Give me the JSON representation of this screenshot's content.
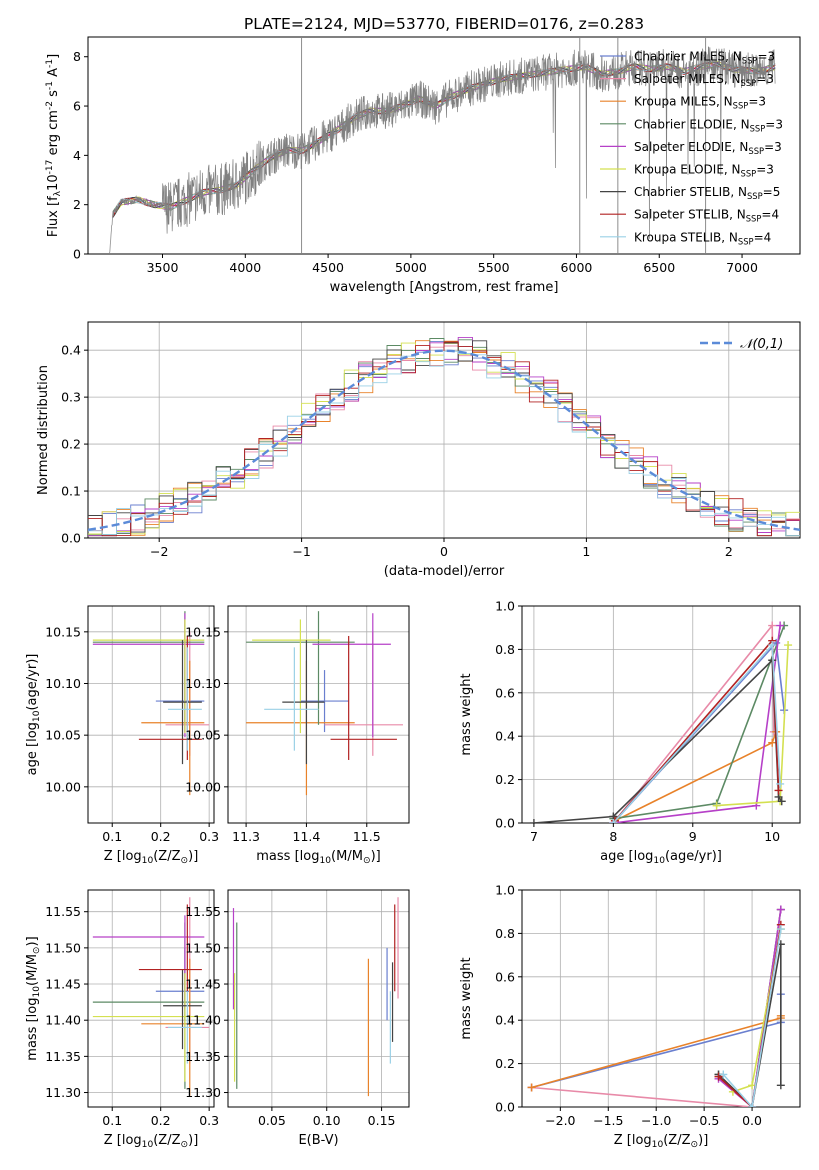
{
  "title": "PLATE=2124, MJD=53770, FIBERID=0176, z=0.283",
  "legend_entries": [
    {
      "label": "Chabrier MILES, N$_{SSP}$=3",
      "color": "#6a7fcf"
    },
    {
      "label": "Salpeter MILES, N$_{SSP}$=3",
      "color": "#e88aa8"
    },
    {
      "label": "Kroupa MILES, N$_{SSP}$=3",
      "color": "#e8822a"
    },
    {
      "label": "Chabrier ELODIE, N$_{SSP}$=3",
      "color": "#5c8a64"
    },
    {
      "label": "Salpeter ELODIE, N$_{SSP}$=3",
      "color": "#b640c8"
    },
    {
      "label": "Kroupa ELODIE, N$_{SSP}$=3",
      "color": "#d4e050"
    },
    {
      "label": "Chabrier STELIB, N$_{SSP}$=5",
      "color": "#444444"
    },
    {
      "label": "Salpeter STELIB, N$_{SSP}$=4",
      "color": "#b22222"
    },
    {
      "label": "Kroupa STELIB, N$_{SSP}$=4",
      "color": "#9ad0e6"
    }
  ],
  "chart_data": [
    {
      "type": "line",
      "id": "spectrum",
      "xlabel": "wavelength [Angstrom, rest frame]",
      "ylabel": "Flux [f$_\\lambda$10$^{-17}$ erg cm$^{-2}$ s$^{-1}$ A$^{-1}$]",
      "xlim": [
        3050,
        7350
      ],
      "ylim": [
        0,
        8.8
      ],
      "xticks": [
        3500,
        4000,
        4500,
        5000,
        5500,
        6000,
        6500,
        7000
      ],
      "yticks": [
        0,
        2,
        4,
        6,
        8
      ],
      "grid": false,
      "legend": "top-right",
      "data_color": "#808080",
      "continuum_points": [
        [
          3180,
          0
        ],
        [
          3200,
          1.6
        ],
        [
          3250,
          2.1
        ],
        [
          3350,
          2.2
        ],
        [
          3450,
          2.0
        ],
        [
          3550,
          1.9
        ],
        [
          3650,
          2.2
        ],
        [
          3750,
          2.5
        ],
        [
          3850,
          2.6
        ],
        [
          3950,
          2.8
        ],
        [
          4050,
          3.4
        ],
        [
          4150,
          3.9
        ],
        [
          4250,
          4.2
        ],
        [
          4350,
          4.2
        ],
        [
          4450,
          4.6
        ],
        [
          4550,
          5.0
        ],
        [
          4650,
          5.5
        ],
        [
          4750,
          5.8
        ],
        [
          4850,
          5.8
        ],
        [
          4950,
          6.0
        ],
        [
          5050,
          6.3
        ],
        [
          5150,
          6.0
        ],
        [
          5250,
          6.4
        ],
        [
          5350,
          6.7
        ],
        [
          5450,
          6.9
        ],
        [
          5550,
          7.1
        ],
        [
          5650,
          7.2
        ],
        [
          5750,
          7.3
        ],
        [
          5850,
          7.4
        ],
        [
          5950,
          7.5
        ],
        [
          6050,
          7.6
        ],
        [
          6150,
          7.3
        ],
        [
          6250,
          7.4
        ],
        [
          6350,
          7.6
        ],
        [
          6450,
          7.5
        ],
        [
          6550,
          7.6
        ],
        [
          6650,
          7.4
        ],
        [
          6750,
          7.6
        ],
        [
          6850,
          7.7
        ],
        [
          6950,
          7.5
        ],
        [
          7100,
          7.4
        ],
        [
          7200,
          7.6
        ]
      ]
    },
    {
      "type": "line",
      "id": "residuals",
      "xlabel": "(data-model)/error",
      "ylabel": "Normed distribution",
      "xlim": [
        -2.5,
        2.5
      ],
      "ylim": [
        0,
        0.46
      ],
      "xticks": [
        -2,
        -1,
        0,
        1,
        2
      ],
      "yticks": [
        0.0,
        0.1,
        0.2,
        0.3,
        0.4
      ],
      "grid": true,
      "legend": "top-right",
      "gaussian_label": "$\\mathcal{N}(0,1)$",
      "gaussian_color": "#5b8bd8",
      "bin_width": 0.1
    },
    {
      "type": "scatter",
      "id": "age_vs_Z",
      "xlabel": "Z [log$_{10}$(Z/Z$_\\odot$)]",
      "ylabel": "age  [log$_{10}$(age/yr)]",
      "xlim": [
        0.05,
        0.31
      ],
      "ylim": [
        9.965,
        10.175
      ],
      "xticks": [
        0.1,
        0.2,
        0.3
      ],
      "yticks": [
        10.0,
        10.05,
        10.1,
        10.15
      ],
      "grid": true,
      "points": [
        {
          "c": 0,
          "x": 0.25,
          "xerr": [
            0.06,
            0.04
          ],
          "y": 10.083,
          "yerr": [
            0.03,
            0.03
          ]
        },
        {
          "c": 1,
          "x": 0.26,
          "xerr": [
            0.05,
            0.04
          ],
          "y": 10.06,
          "yerr": [
            0.03,
            0.09
          ]
        },
        {
          "c": 2,
          "x": 0.26,
          "xerr": [
            0.1,
            0.03
          ],
          "y": 10.062,
          "yerr": [
            0.07,
            0.06
          ]
        },
        {
          "c": 3,
          "x": 0.25,
          "xerr": [
            0.19,
            0.04
          ],
          "y": 10.14,
          "yerr": [
            0.08,
            0.03
          ]
        },
        {
          "c": 4,
          "x": 0.25,
          "xerr": [
            0.19,
            0.04
          ],
          "y": 10.138,
          "yerr": [
            0.09,
            0.03
          ]
        },
        {
          "c": 5,
          "x": 0.25,
          "xerr": [
            0.19,
            0.04
          ],
          "y": 10.142,
          "yerr": [
            0.09,
            0.02
          ]
        },
        {
          "c": 6,
          "x": 0.245,
          "xerr": [
            0.04,
            0.04
          ],
          "y": 10.082,
          "yerr": [
            0.06,
            0.06
          ]
        },
        {
          "c": 7,
          "x": 0.255,
          "xerr": [
            0.1,
            0.03
          ],
          "y": 10.046,
          "yerr": [
            0.02,
            0.1
          ]
        },
        {
          "c": 8,
          "x": 0.255,
          "xerr": [
            0.04,
            0.03
          ],
          "y": 10.075,
          "yerr": [
            0.04,
            0.06
          ]
        }
      ]
    },
    {
      "type": "scatter",
      "id": "age_vs_mass",
      "xlabel": "mass [log$_{10}$(M/M$_\\odot$)]",
      "ylabel": "",
      "xlim": [
        11.27,
        11.57
      ],
      "ylim": [
        9.965,
        10.175
      ],
      "xticks": [
        11.3,
        11.4,
        11.5
      ],
      "yticks": [
        10.0,
        10.05,
        10.1,
        10.15
      ],
      "grid": true,
      "points": [
        {
          "c": 0,
          "x": 11.43,
          "xerr": [
            0.04,
            0.04
          ],
          "y": 10.083,
          "yerr": [
            0.03,
            0.03
          ]
        },
        {
          "c": 1,
          "x": 11.51,
          "xerr": [
            0.08,
            0.05
          ],
          "y": 10.06,
          "yerr": [
            0.03,
            0.09
          ]
        },
        {
          "c": 2,
          "x": 11.4,
          "xerr": [
            0.1,
            0.08
          ],
          "y": 10.062,
          "yerr": [
            0.07,
            0.06
          ]
        },
        {
          "c": 3,
          "x": 11.42,
          "xerr": [
            0.12,
            0.06
          ],
          "y": 10.14,
          "yerr": [
            0.08,
            0.03
          ]
        },
        {
          "c": 4,
          "x": 11.51,
          "xerr": [
            0.1,
            0.03
          ],
          "y": 10.138,
          "yerr": [
            0.09,
            0.03
          ]
        },
        {
          "c": 5,
          "x": 11.39,
          "xerr": [
            0.08,
            0.05
          ],
          "y": 10.142,
          "yerr": [
            0.09,
            0.02
          ]
        },
        {
          "c": 6,
          "x": 11.4,
          "xerr": [
            0.04,
            0.03
          ],
          "y": 10.082,
          "yerr": [
            0.06,
            0.06
          ]
        },
        {
          "c": 7,
          "x": 11.47,
          "xerr": [
            0.03,
            0.08
          ],
          "y": 10.046,
          "yerr": [
            0.02,
            0.1
          ]
        },
        {
          "c": 8,
          "x": 11.38,
          "xerr": [
            0.05,
            0.04
          ],
          "y": 10.075,
          "yerr": [
            0.04,
            0.06
          ]
        }
      ]
    },
    {
      "type": "line",
      "id": "weight_vs_age",
      "xlabel": "age  [log$_{10}$(age/yr)]",
      "ylabel": "mass weight",
      "xlim": [
        6.85,
        10.35
      ],
      "ylim": [
        0,
        1.0
      ],
      "xticks": [
        7,
        8,
        9,
        10
      ],
      "yticks": [
        0.0,
        0.2,
        0.4,
        0.6,
        0.8,
        1.0
      ],
      "grid": true,
      "series": [
        {
          "c": 0,
          "x": [
            8.0,
            10.05,
            10.15
          ],
          "y": [
            0.0,
            0.83,
            0.52
          ]
        },
        {
          "c": 1,
          "x": [
            8.0,
            10.0,
            10.02
          ],
          "y": [
            0.0,
            0.91,
            0.42
          ]
        },
        {
          "c": 2,
          "x": [
            8.02,
            10.0,
            10.05
          ],
          "y": [
            0.01,
            0.37,
            0.42
          ]
        },
        {
          "c": 3,
          "x": [
            8.0,
            9.3,
            10.15
          ],
          "y": [
            0.02,
            0.09,
            0.91
          ]
        },
        {
          "c": 4,
          "x": [
            8.0,
            9.8,
            10.1
          ],
          "y": [
            0.0,
            0.08,
            0.91
          ]
        },
        {
          "c": 5,
          "x": [
            9.3,
            10.1,
            10.2
          ],
          "y": [
            0.08,
            0.1,
            0.82
          ]
        },
        {
          "c": 6,
          "x": [
            7.0,
            8.0,
            10.0,
            10.08,
            10.12
          ],
          "y": [
            0.0,
            0.03,
            0.75,
            0.12,
            0.1
          ]
        },
        {
          "c": 7,
          "x": [
            8.02,
            10.0,
            10.08
          ],
          "y": [
            0.01,
            0.84,
            0.15
          ]
        },
        {
          "c": 8,
          "x": [
            8.0,
            10.0,
            10.1
          ],
          "y": [
            0.0,
            0.82,
            0.18
          ]
        }
      ]
    },
    {
      "type": "scatter",
      "id": "mass_vs_Z",
      "xlabel": "Z [log$_{10}$(Z/Z$_\\odot$)]",
      "ylabel": "mass [log$_{10}$(M/M$_\\odot$)]",
      "xlim": [
        0.05,
        0.31
      ],
      "ylim": [
        11.28,
        11.58
      ],
      "xticks": [
        0.1,
        0.2,
        0.3
      ],
      "yticks": [
        11.3,
        11.35,
        11.4,
        11.45,
        11.5,
        11.55
      ],
      "grid": true,
      "points": [
        {
          "c": 0,
          "x": 0.25,
          "xerr": [
            0.06,
            0.04
          ],
          "y": 11.44,
          "yerr": [
            0.04,
            0.06
          ]
        },
        {
          "c": 1,
          "x": 0.26,
          "xerr": [
            0.05,
            0.04
          ],
          "y": 11.39,
          "yerr": [
            0.05,
            0.18
          ]
        },
        {
          "c": 2,
          "x": 0.26,
          "xerr": [
            0.1,
            0.03
          ],
          "y": 11.395,
          "yerr": [
            0.1,
            0.09
          ]
        },
        {
          "c": 3,
          "x": 0.25,
          "xerr": [
            0.19,
            0.04
          ],
          "y": 11.425,
          "yerr": [
            0.12,
            0.11
          ]
        },
        {
          "c": 4,
          "x": 0.25,
          "xerr": [
            0.19,
            0.04
          ],
          "y": 11.515,
          "yerr": [
            0.1,
            0.03
          ]
        },
        {
          "c": 5,
          "x": 0.25,
          "xerr": [
            0.19,
            0.04
          ],
          "y": 11.405,
          "yerr": [
            0.09,
            0.06
          ]
        },
        {
          "c": 6,
          "x": 0.245,
          "xerr": [
            0.04,
            0.04
          ],
          "y": 11.42,
          "yerr": [
            0.06,
            0.05
          ]
        },
        {
          "c": 7,
          "x": 0.255,
          "xerr": [
            0.1,
            0.03
          ],
          "y": 11.47,
          "yerr": [
            0.03,
            0.09
          ]
        },
        {
          "c": 8,
          "x": 0.255,
          "xerr": [
            0.04,
            0.03
          ],
          "y": 11.39,
          "yerr": [
            0.05,
            0.05
          ]
        }
      ]
    },
    {
      "type": "scatter",
      "id": "mass_vs_EBV",
      "xlabel": "E(B-V)",
      "ylabel": "",
      "xlim": [
        0.01,
        0.175
      ],
      "ylim": [
        11.28,
        11.58
      ],
      "xticks": [
        0.05,
        0.1,
        0.15
      ],
      "yticks": [
        11.3,
        11.35,
        11.4,
        11.45,
        11.5,
        11.55
      ],
      "grid": true,
      "points": [
        {
          "c": 0,
          "x": 0.155,
          "xerr": [
            0,
            0
          ],
          "y": 11.44,
          "yerr": [
            0.04,
            0.06
          ]
        },
        {
          "c": 1,
          "x": 0.165,
          "xerr": [
            0,
            0
          ],
          "y": 11.48,
          "yerr": [
            0.05,
            0.09
          ]
        },
        {
          "c": 2,
          "x": 0.138,
          "xerr": [
            0,
            0
          ],
          "y": 11.395,
          "yerr": [
            0.1,
            0.09
          ]
        },
        {
          "c": 3,
          "x": 0.018,
          "xerr": [
            0,
            0
          ],
          "y": 11.425,
          "yerr": [
            0.12,
            0.11
          ]
        },
        {
          "c": 4,
          "x": 0.015,
          "xerr": [
            0,
            0
          ],
          "y": 11.515,
          "yerr": [
            0.1,
            0.04
          ]
        },
        {
          "c": 5,
          "x": 0.016,
          "xerr": [
            0,
            0
          ],
          "y": 11.405,
          "yerr": [
            0.09,
            0.06
          ]
        },
        {
          "c": 6,
          "x": 0.16,
          "xerr": [
            0,
            0
          ],
          "y": 11.43,
          "yerr": [
            0.06,
            0.05
          ]
        },
        {
          "c": 7,
          "x": 0.162,
          "xerr": [
            0,
            0
          ],
          "y": 11.47,
          "yerr": [
            0.03,
            0.09
          ]
        },
        {
          "c": 8,
          "x": 0.158,
          "xerr": [
            0,
            0
          ],
          "y": 11.39,
          "yerr": [
            0.05,
            0.05
          ]
        }
      ]
    },
    {
      "type": "line",
      "id": "weight_vs_Z",
      "xlabel": "Z [log$_{10}$(Z/Z$_\\odot$)]",
      "ylabel": "mass weight",
      "xlim": [
        -2.4,
        0.5
      ],
      "ylim": [
        0,
        1.0
      ],
      "xticks": [
        -2.0,
        -1.5,
        -1.0,
        -0.5,
        0.0
      ],
      "yticks": [
        0.0,
        0.2,
        0.4,
        0.6,
        0.8,
        1.0
      ],
      "grid": true,
      "series": [
        {
          "c": 0,
          "x": [
            -2.3,
            0.3,
            0.3
          ],
          "y": [
            0.09,
            0.39,
            0.52
          ]
        },
        {
          "c": 1,
          "x": [
            -2.3,
            0.0,
            0.3
          ],
          "y": [
            0.09,
            0.0,
            0.91
          ]
        },
        {
          "c": 2,
          "x": [
            -2.3,
            0.3,
            0.3
          ],
          "y": [
            0.09,
            0.41,
            0.42
          ]
        },
        {
          "c": 3,
          "x": [
            -0.35,
            0.0,
            0.3
          ],
          "y": [
            0.15,
            0.0,
            0.91
          ]
        },
        {
          "c": 4,
          "x": [
            -0.35,
            0.0,
            0.3
          ],
          "y": [
            0.13,
            0.0,
            0.91
          ]
        },
        {
          "c": 5,
          "x": [
            -0.2,
            0.0,
            0.3
          ],
          "y": [
            0.07,
            0.1,
            0.82
          ]
        },
        {
          "c": 6,
          "x": [
            -0.35,
            0.0,
            0.3,
            0.3
          ],
          "y": [
            0.15,
            0.0,
            0.75,
            0.1
          ]
        },
        {
          "c": 7,
          "x": [
            -0.35,
            0.0,
            0.3
          ],
          "y": [
            0.14,
            0.0,
            0.84
          ]
        },
        {
          "c": 8,
          "x": [
            -0.3,
            0.0,
            0.3
          ],
          "y": [
            0.15,
            0.0,
            0.82
          ]
        }
      ]
    }
  ]
}
